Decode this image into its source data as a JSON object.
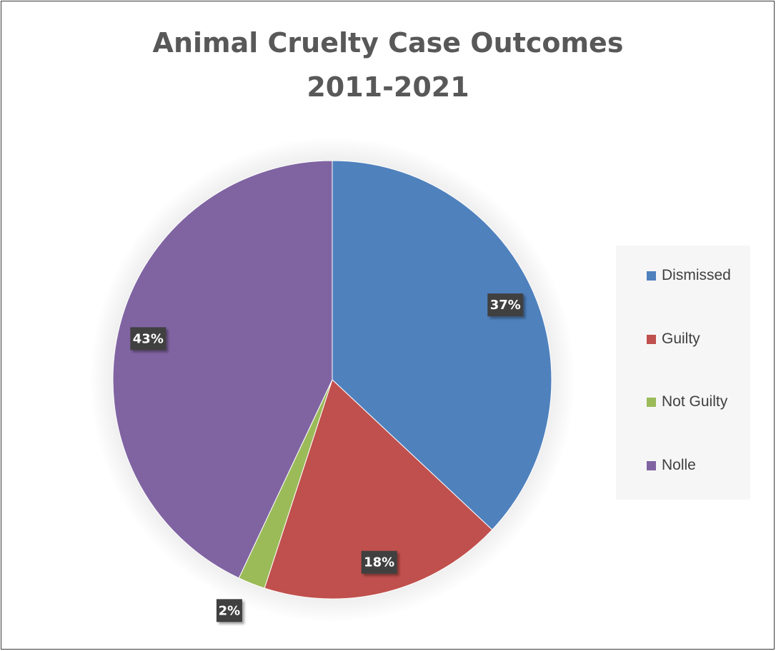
{
  "chart_data": {
    "type": "pie",
    "title": "Animal Cruelty Case Outcomes",
    "subtitle": "2011-2021",
    "categories": [
      "Dismissed",
      "Guilty",
      "Not Guilty",
      "Nolle"
    ],
    "values": [
      37,
      18,
      2,
      43
    ],
    "data_labels": [
      "37%",
      "18%",
      "2%",
      "43%"
    ],
    "colors": [
      "#4f81bd",
      "#c0504d",
      "#9bbb59",
      "#8064a2"
    ],
    "legend_position": "right"
  }
}
